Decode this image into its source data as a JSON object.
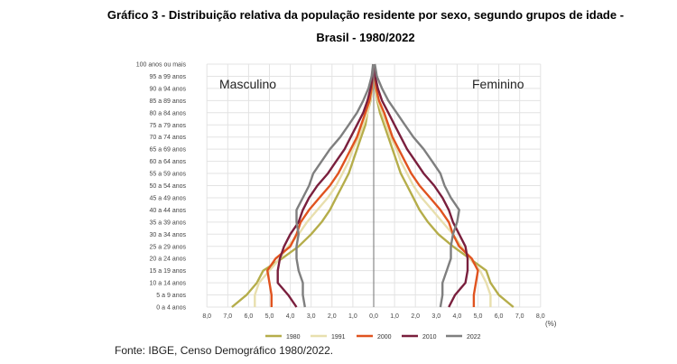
{
  "title": {
    "line1": "Gráfico 3 - Distribuição relativa da população residente por sexo, segundo grupos de idade -",
    "line2": "Brasil - 1980/2022"
  },
  "source": "Fonte: IBGE, Censo Demográfico 1980/2022.",
  "chart_data": {
    "type": "line",
    "subtype": "population-pyramid",
    "side_labels": {
      "male": "Masculino",
      "female": "Feminino"
    },
    "age_groups": [
      "0 a 4 anos",
      "5 a 9 anos",
      "10 a 14 anos",
      "15 a 19 anos",
      "20 a 24 anos",
      "25 a 29 anos",
      "30 a 34 anos",
      "35 a 39 anos",
      "40 a 44 anos",
      "45 a 49 anos",
      "50 a 54 anos",
      "55 a 59 anos",
      "60 a 64 anos",
      "65 a 69 anos",
      "70 a 74 anos",
      "75 a 79 anos",
      "80 a 84 anos",
      "85 a 89 anos",
      "90 a 94 anos",
      "95 a 99 anos",
      "100 anos ou mais"
    ],
    "x_tick_labels": [
      "8,0",
      "7,0",
      "6,0",
      "5,0",
      "4,0",
      "3,0",
      "2,0",
      "1,0",
      "0,0",
      "1,0",
      "2,0",
      "3,0",
      "4,0",
      "5,0",
      "6,0",
      "7,0",
      "8,0"
    ],
    "x_unit": "(%)",
    "xlim": [
      -8,
      8
    ],
    "grid": true,
    "legend_position": "bottom",
    "series": [
      {
        "name": "1980",
        "color": "#b5ad4a",
        "male": [
          6.8,
          6.1,
          5.6,
          5.3,
          4.4,
          3.6,
          3.0,
          2.5,
          2.1,
          1.8,
          1.5,
          1.2,
          1.0,
          0.8,
          0.6,
          0.4,
          0.3,
          0.15,
          0.07,
          0.03,
          0.01
        ],
        "female": [
          6.7,
          6.0,
          5.6,
          5.4,
          4.6,
          3.8,
          3.1,
          2.6,
          2.2,
          1.9,
          1.6,
          1.3,
          1.1,
          0.9,
          0.7,
          0.5,
          0.3,
          0.17,
          0.08,
          0.03,
          0.01
        ]
      },
      {
        "name": "1991",
        "color": "#e8dfae",
        "male": [
          5.7,
          5.7,
          5.5,
          5.0,
          4.5,
          4.1,
          3.6,
          3.2,
          2.7,
          2.2,
          1.8,
          1.5,
          1.2,
          1.0,
          0.7,
          0.5,
          0.3,
          0.17,
          0.08,
          0.03,
          0.01
        ],
        "female": [
          5.6,
          5.6,
          5.4,
          5.1,
          4.6,
          4.2,
          3.8,
          3.3,
          2.8,
          2.3,
          1.9,
          1.6,
          1.3,
          1.1,
          0.8,
          0.6,
          0.4,
          0.2,
          0.1,
          0.04,
          0.01
        ]
      },
      {
        "name": "2000",
        "color": "#e0531f",
        "male": [
          4.9,
          4.9,
          5.0,
          5.1,
          4.7,
          4.0,
          3.7,
          3.5,
          3.1,
          2.6,
          2.1,
          1.7,
          1.4,
          1.1,
          0.8,
          0.6,
          0.4,
          0.2,
          0.1,
          0.04,
          0.01
        ],
        "female": [
          4.8,
          4.8,
          4.9,
          5.0,
          4.7,
          4.1,
          3.8,
          3.6,
          3.2,
          2.7,
          2.2,
          1.8,
          1.5,
          1.2,
          0.9,
          0.7,
          0.5,
          0.25,
          0.12,
          0.05,
          0.02
        ]
      },
      {
        "name": "2010",
        "color": "#7a1f3d",
        "male": [
          3.7,
          4.1,
          4.6,
          4.6,
          4.5,
          4.3,
          4.0,
          3.6,
          3.4,
          3.1,
          2.7,
          2.2,
          1.8,
          1.4,
          1.1,
          0.8,
          0.5,
          0.3,
          0.15,
          0.05,
          0.02
        ],
        "female": [
          3.6,
          3.9,
          4.4,
          4.5,
          4.5,
          4.4,
          4.1,
          3.8,
          3.6,
          3.3,
          2.9,
          2.4,
          2.0,
          1.6,
          1.3,
          1.0,
          0.7,
          0.4,
          0.2,
          0.07,
          0.02
        ]
      },
      {
        "name": "2022",
        "color": "#7f7f7f",
        "male": [
          3.3,
          3.4,
          3.4,
          3.6,
          3.7,
          3.7,
          3.6,
          3.7,
          3.7,
          3.4,
          3.1,
          2.9,
          2.5,
          2.1,
          1.6,
          1.2,
          0.8,
          0.5,
          0.25,
          0.1,
          0.03
        ],
        "female": [
          3.2,
          3.3,
          3.3,
          3.5,
          3.7,
          3.7,
          3.8,
          4.0,
          4.1,
          3.7,
          3.4,
          3.2,
          2.8,
          2.4,
          1.9,
          1.5,
          1.1,
          0.7,
          0.4,
          0.15,
          0.05
        ]
      }
    ]
  }
}
